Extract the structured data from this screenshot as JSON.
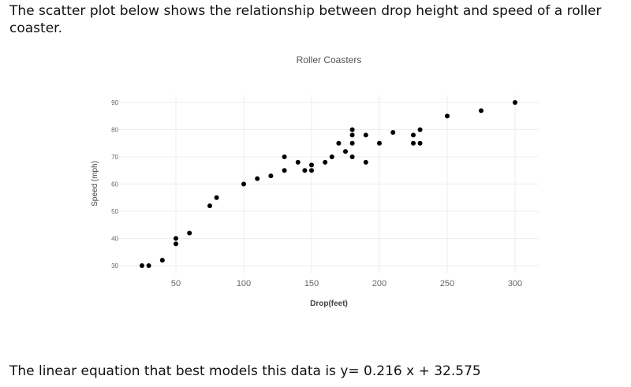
{
  "intro_text": "The scatter plot below shows the relationship between drop height and speed of a roller coaster.",
  "equation_text": "The linear equation that best models this data is y= 0.216 x + 32.575",
  "chart_data": {
    "type": "scatter",
    "title": "Roller Coasters",
    "xlabel": "Drop(feet)",
    "ylabel": "Speed (mph)",
    "xlim": [
      0,
      318
    ],
    "ylim": [
      28,
      92
    ],
    "x_ticks": [
      50,
      100,
      150,
      200,
      250,
      300
    ],
    "y_ticks": [
      30,
      40,
      50,
      60,
      70,
      80,
      90
    ],
    "grid": true,
    "marker_color": "#000000",
    "points": [
      [
        25,
        30
      ],
      [
        30,
        30
      ],
      [
        40,
        32
      ],
      [
        50,
        40
      ],
      [
        50,
        38
      ],
      [
        60,
        42
      ],
      [
        75,
        52
      ],
      [
        80,
        55
      ],
      [
        100,
        60
      ],
      [
        110,
        62
      ],
      [
        120,
        63
      ],
      [
        130,
        70
      ],
      [
        130,
        65
      ],
      [
        140,
        68
      ],
      [
        145,
        65
      ],
      [
        150,
        67
      ],
      [
        150,
        65
      ],
      [
        160,
        68
      ],
      [
        165,
        70
      ],
      [
        170,
        75
      ],
      [
        175,
        72
      ],
      [
        180,
        80
      ],
      [
        180,
        78
      ],
      [
        180,
        75
      ],
      [
        180,
        70
      ],
      [
        190,
        78
      ],
      [
        190,
        68
      ],
      [
        200,
        75
      ],
      [
        210,
        79
      ],
      [
        225,
        78
      ],
      [
        225,
        75
      ],
      [
        230,
        80
      ],
      [
        230,
        75
      ],
      [
        250,
        85
      ],
      [
        275,
        87
      ],
      [
        300,
        90
      ]
    ]
  }
}
